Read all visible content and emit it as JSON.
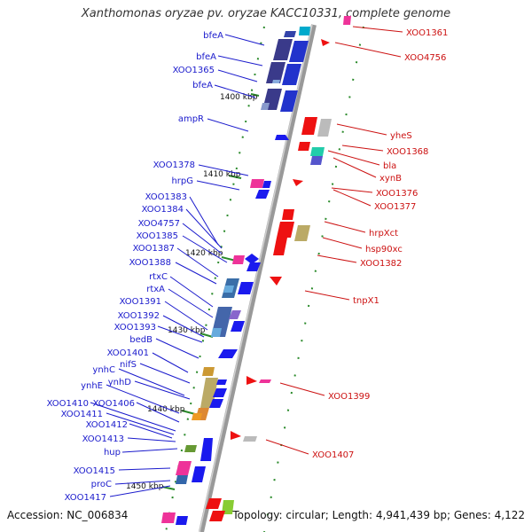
{
  "title": "Xanthomonas oryzae pv. oryzae KACC10331, complete genome",
  "footer": {
    "accession": "Accession: NC_006834",
    "summary": "Topology: circular; Length: 4,941,439 bp; Genes: 4,122"
  },
  "colors": {
    "left_label": "#1a1acc",
    "right_label": "#cc1111",
    "backbone": "#999999",
    "tick": "#2a8a2a"
  },
  "scale_labels": [
    "1400 kbp",
    "1410 kbp",
    "1420 kbp",
    "1430 kbp",
    "1440 kbp",
    "1450 kbp"
  ],
  "left_genes": [
    "bfeA",
    "bfeA",
    "XOO1365",
    "bfeA",
    "ampR",
    "XOO1378",
    "hrpG",
    "XOO1383",
    "XOO1384",
    "XOO4757",
    "XOO1385",
    "XOO1387",
    "XOO1388",
    "rtxC",
    "rtxA",
    "XOO1391",
    "XOO1392",
    "XOO1393",
    "bedB",
    "XOO1401",
    "nifS",
    "ynhC",
    "ynhD",
    "ynhE",
    "XOO1410",
    "XOO1406",
    "XOO1411",
    "XOO1412",
    "XOO1413",
    "hup",
    "XOO1415",
    "proC",
    "XOO1417"
  ],
  "right_genes": [
    "XOO1361",
    "XOO4756",
    "yheS",
    "XOO1368",
    "bla",
    "xynB",
    "XOO1376",
    "XOO1377",
    "hrpXct",
    "hsp90xc",
    "XOO1382",
    "tnpX1",
    "XOO1399",
    "XOO1407"
  ]
}
